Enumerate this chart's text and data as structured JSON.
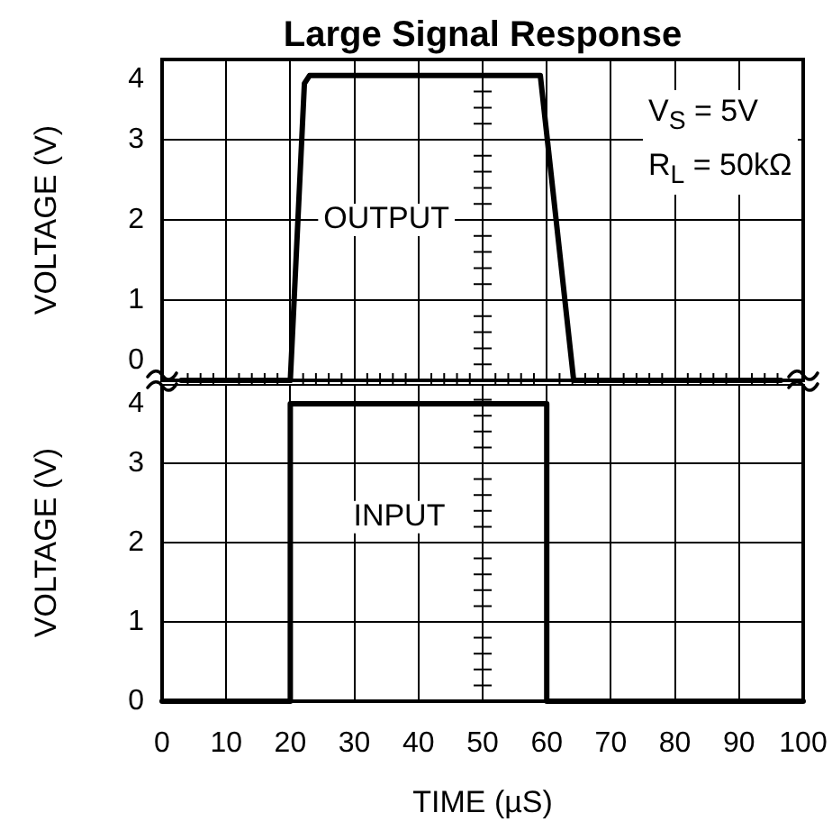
{
  "chart_data": [
    {
      "type": "line",
      "title": "Large Signal Response",
      "ylabel": "VOLTAGE (V)",
      "annotations": [
        "V$_{S}$ = 5V",
        "R$_{L}$ = 50kΩ"
      ],
      "series": [
        {
          "name": "OUTPUT",
          "color": "#000000",
          "x": [
            3,
            20,
            22.2,
            23,
            59,
            64.2,
            96.5
          ],
          "values": [
            0,
            0,
            3.7,
            3.8,
            3.8,
            0,
            0
          ]
        }
      ],
      "xlim": [
        0,
        100
      ],
      "xticks": [
        0,
        10,
        20,
        30,
        40,
        50,
        60,
        70,
        80,
        90,
        100
      ],
      "ylim": [
        0,
        4
      ],
      "yticks": [
        0,
        1,
        2,
        3,
        4
      ],
      "tick_labels": "y",
      "grid": true,
      "marker": "none",
      "line_style": "solid"
    },
    {
      "type": "line",
      "xlabel": "TIME (µS)",
      "ylabel": "VOLTAGE (V)",
      "series": [
        {
          "name": "INPUT",
          "color": "#000000",
          "x": [
            0,
            20,
            20,
            60,
            60,
            100
          ],
          "values": [
            0,
            0,
            3.75,
            3.75,
            0,
            0
          ]
        }
      ],
      "xlim": [
        0,
        100
      ],
      "xticks": [
        0,
        10,
        20,
        30,
        40,
        50,
        60,
        70,
        80,
        90,
        100
      ],
      "ylim": [
        0,
        4
      ],
      "yticks": [
        0,
        1,
        2,
        3,
        4
      ],
      "grid": true,
      "marker": "none",
      "line_style": "solid"
    }
  ]
}
